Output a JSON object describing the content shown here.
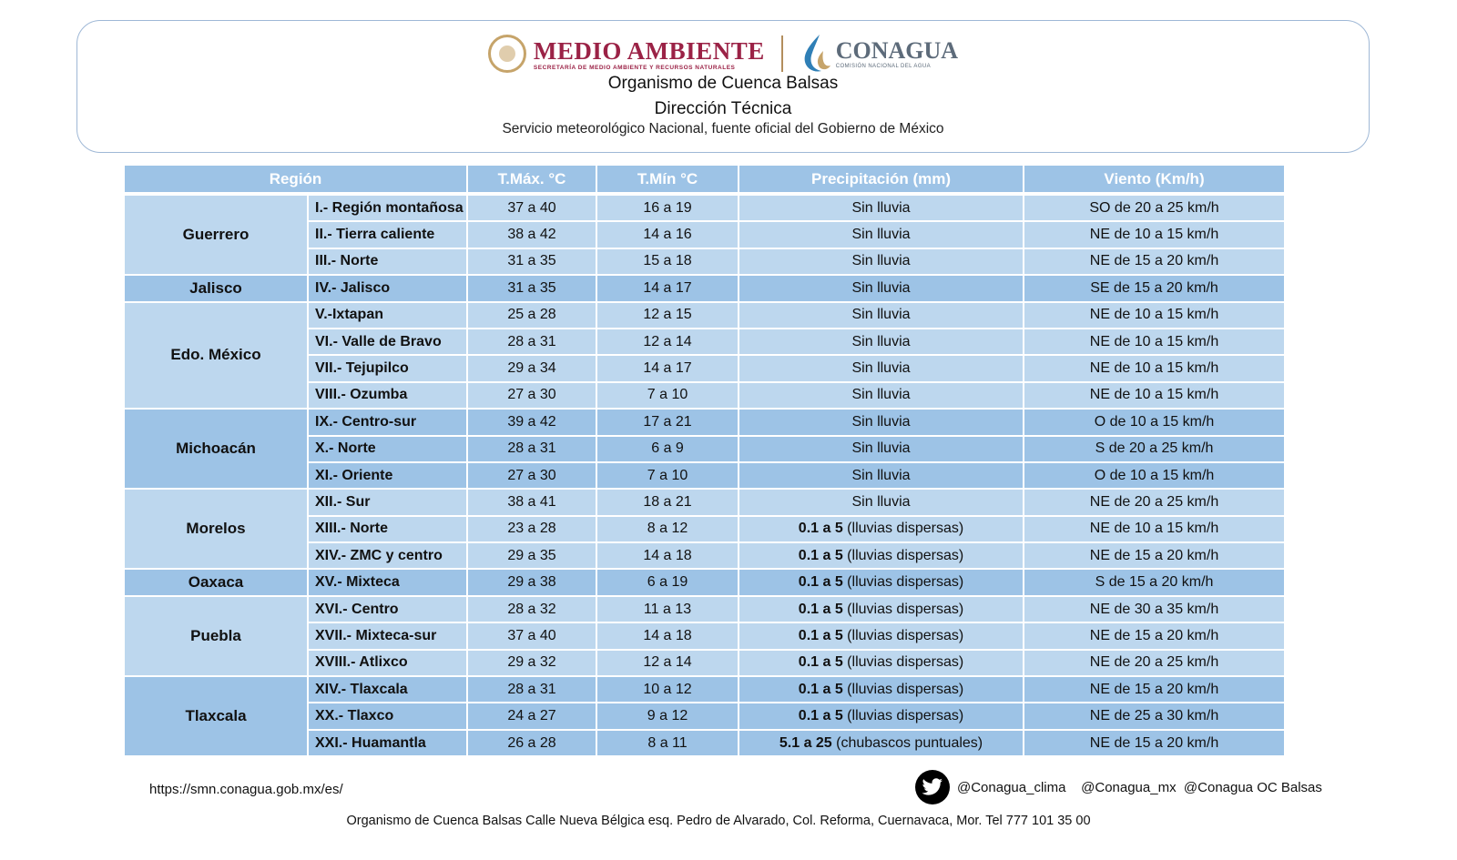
{
  "header": {
    "logo_left_title": "MEDIO AMBIENTE",
    "logo_left_subtitle": "SECRETARÍA DE MEDIO AMBIENTE Y RECURSOS NATURALES",
    "logo_right_title": "CONAGUA",
    "logo_right_subtitle": "COMISIÓN NACIONAL DEL AGUA",
    "line1": "Organismo de Cuenca Balsas",
    "line2": "Dirección Técnica",
    "line3": "Servicio meteorológico Nacional, fuente oficial del Gobierno de México",
    "colors": {
      "semarnat": "#9b2246",
      "conagua": "#5d6b7a",
      "gold": "#b38e5d"
    }
  },
  "table": {
    "headers": [
      "Región",
      "T.Máx. °C",
      "T.Mín °C",
      "Precipitación  (mm)",
      "Viento (Km/h)"
    ],
    "colors": {
      "header": "#9dc3e6",
      "light_row": "#bdd7ee",
      "dark_row": "#9dc3e6"
    },
    "groups": [
      {
        "state": "Guerrero",
        "shade": "light",
        "rows": [
          {
            "region": "I.- Región montañosa",
            "tmax": "37 a 40",
            "tmin": "16 a 19",
            "precip_bold": "",
            "precip": "Sin lluvia",
            "wind": "SO  de 20 a 25 km/h"
          },
          {
            "region": "II.- Tierra caliente",
            "tmax": "38 a 42",
            "tmin": "14 a 16",
            "precip_bold": "",
            "precip": "Sin lluvia",
            "wind": "NE de 10 a 15 km/h"
          },
          {
            "region": "III.- Norte",
            "tmax": "31 a 35",
            "tmin": "15 a 18",
            "precip_bold": "",
            "precip": "Sin lluvia",
            "wind": "NE de 15 a 20 km/h"
          }
        ]
      },
      {
        "state": "Jalisco",
        "shade": "dark",
        "rows": [
          {
            "region": "IV.- Jalisco",
            "tmax": "31 a 35",
            "tmin": "14 a 17",
            "precip_bold": "",
            "precip": "Sin lluvia",
            "wind": "SE de 15 a 20 km/h"
          }
        ]
      },
      {
        "state": "Edo. México",
        "shade": "light",
        "rows": [
          {
            "region": "V.-Ixtapan",
            "tmax": "25 a 28",
            "tmin": "12 a 15",
            "precip_bold": "",
            "precip": "Sin lluvia",
            "wind": "NE de 10 a 15 km/h"
          },
          {
            "region": "VI.- Valle de Bravo",
            "tmax": "28 a 31",
            "tmin": "12 a 14",
            "precip_bold": "",
            "precip": "Sin lluvia",
            "wind": "NE de 10 a 15 km/h"
          },
          {
            "region": "VII.- Tejupilco",
            "tmax": "29 a 34",
            "tmin": "14 a 17",
            "precip_bold": "",
            "precip": "Sin lluvia",
            "wind": "NE de 10 a 15 km/h"
          },
          {
            "region": "VIII.-  Ozumba",
            "tmax": "27 a 30",
            "tmin": "7 a 10",
            "precip_bold": "",
            "precip": "Sin lluvia",
            "wind": "NE de 10 a 15 km/h"
          }
        ]
      },
      {
        "state": "Michoacán",
        "shade": "dark",
        "rows": [
          {
            "region": "IX.- Centro-sur",
            "tmax": "39 a 42",
            "tmin": "17 a 21",
            "precip_bold": "",
            "precip": "Sin lluvia",
            "wind": "O de 10 a 15 km/h"
          },
          {
            "region": "X.- Norte",
            "tmax": "28 a 31",
            "tmin": "6 a 9",
            "precip_bold": "",
            "precip": "Sin lluvia",
            "wind": "S de 20 a 25 km/h"
          },
          {
            "region": "XI.- Oriente",
            "tmax": "27 a 30",
            "tmin": "7 a 10",
            "precip_bold": "",
            "precip": "Sin lluvia",
            "wind": "O de 10 a 15 km/h"
          }
        ]
      },
      {
        "state": "Morelos",
        "shade": "light",
        "rows": [
          {
            "region": "XII.- Sur",
            "tmax": "38 a 41",
            "tmin": "18 a 21",
            "precip_bold": "",
            "precip": "Sin lluvia",
            "wind": "NE de 20 a 25 km/h"
          },
          {
            "region": "XIII.- Norte",
            "tmax": "23 a 28",
            "tmin": "8 a 12",
            "precip_bold": "0.1 a 5",
            "precip": " (lluvias dispersas)",
            "wind": "NE de 10 a 15 km/h"
          },
          {
            "region": "XIV.- ZMC y centro",
            "tmax": "29 a 35",
            "tmin": "14 a 18",
            "precip_bold": "0.1 a 5",
            "precip": " (lluvias dispersas)",
            "wind": "NE de 15 a 20 km/h"
          }
        ]
      },
      {
        "state": "Oaxaca",
        "shade": "dark",
        "rows": [
          {
            "region": "XV.- Mixteca",
            "tmax": "29 a 38",
            "tmin": "6 a 19",
            "precip_bold": "0.1 a 5",
            "precip": " (lluvias dispersas)",
            "wind": "S de 15 a 20 km/h"
          }
        ]
      },
      {
        "state": "Puebla",
        "shade": "light",
        "rows": [
          {
            "region": "XVI.- Centro",
            "tmax": "28 a 32",
            "tmin": "11 a 13",
            "precip_bold": "0.1 a 5",
            "precip": " (lluvias dispersas)",
            "wind": "NE de 30 a 35 km/h"
          },
          {
            "region": "XVII.- Mixteca-sur",
            "tmax": "37 a 40",
            "tmin": "14 a 18",
            "precip_bold": "0.1 a 5",
            "precip": " (lluvias dispersas)",
            "wind": "NE de 15 a 20 km/h"
          },
          {
            "region": "XVIII.- Atlixco",
            "tmax": "29 a 32",
            "tmin": "12 a 14",
            "precip_bold": "0.1 a 5",
            "precip": " (lluvias dispersas)",
            "wind": "NE de 20 a 25 km/h"
          }
        ]
      },
      {
        "state": "Tlaxcala",
        "shade": "dark",
        "rows": [
          {
            "region": "XIV.- Tlaxcala",
            "tmax": "28 a 31",
            "tmin": "10 a 12",
            "precip_bold": "0.1 a 5",
            "precip": " (lluvias dispersas)",
            "wind": "NE de 15 a 20 km/h"
          },
          {
            "region": "XX.- Tlaxco",
            "tmax": "24 a 27",
            "tmin": "9 a 12",
            "precip_bold": "0.1 a 5",
            "precip": " (lluvias dispersas)",
            "wind": "NE de 25 a 30 km/h"
          },
          {
            "region": "XXI.- Huamantla",
            "tmax": "26 a 28",
            "tmin": "8 a 11",
            "precip_bold": "5.1 a 25",
            "precip": " (chubascos puntuales)",
            "wind": "NE de 15 a 20 km/h"
          }
        ]
      }
    ]
  },
  "footer": {
    "url": "https://smn.conagua.gob.mx/es/",
    "social_icon": "twitter-icon",
    "social_handles": "@Conagua_clima    @Conagua_mx  @Conagua OC Balsas",
    "address": "Organismo de Cuenca Balsas Calle Nueva Bélgica esq. Pedro de Alvarado, Col. Reforma, Cuernavaca, Mor.  Tel 777 101 35 00"
  }
}
